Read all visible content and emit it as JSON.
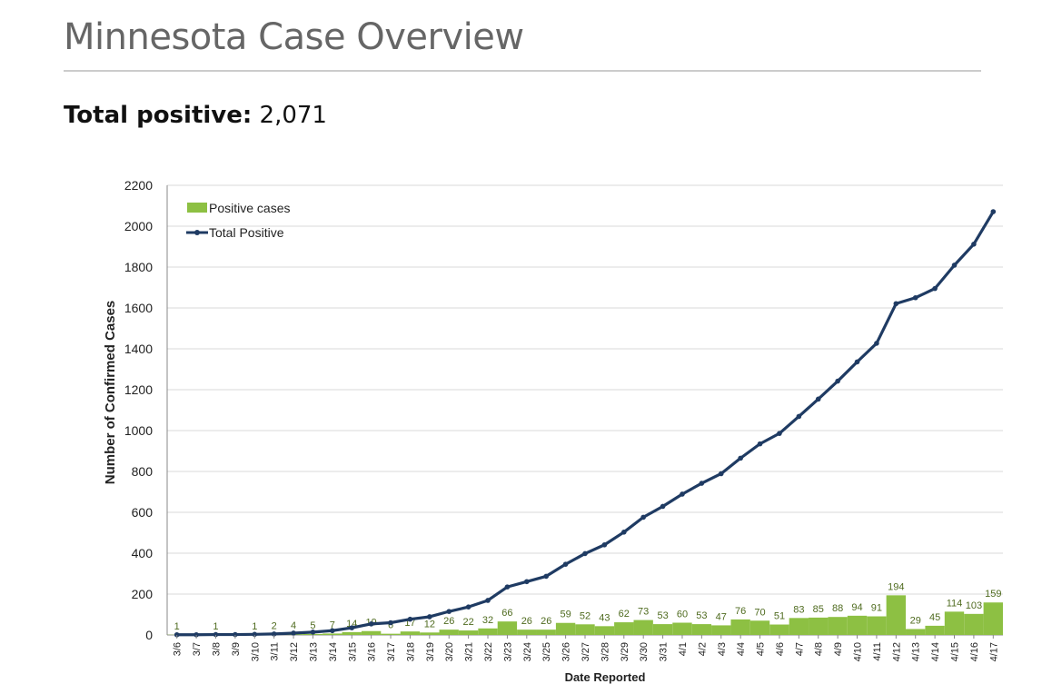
{
  "page": {
    "title": "Minnesota Case Overview",
    "total_label": "Total positive:",
    "total_value": "2,071"
  },
  "colors": {
    "bar": "#8dc043",
    "line": "#1f3b63",
    "bar_label": "#4f6b1f",
    "grid": "#d9d9d9"
  },
  "chart_data": {
    "type": "bar+line",
    "xlabel": "Date Reported",
    "ylabel": "Number of Confirmed Cases",
    "ylim": [
      0,
      2200
    ],
    "yticks": [
      0,
      200,
      400,
      600,
      800,
      1000,
      1200,
      1400,
      1600,
      1800,
      2000,
      2200
    ],
    "legend": {
      "position": "top-left",
      "entries": [
        "Positive cases",
        "Total Positive"
      ]
    },
    "categories": [
      "3/6",
      "3/7",
      "3/8",
      "3/9",
      "3/10",
      "3/11",
      "3/12",
      "3/13",
      "3/14",
      "3/15",
      "3/16",
      "3/17",
      "3/18",
      "3/19",
      "3/20",
      "3/21",
      "3/22",
      "3/23",
      "3/24",
      "3/25",
      "3/26",
      "3/27",
      "3/28",
      "3/29",
      "3/30",
      "3/31",
      "4/1",
      "4/2",
      "4/3",
      "4/4",
      "4/5",
      "4/6",
      "4/7",
      "4/8",
      "4/9",
      "4/10",
      "4/11",
      "4/12",
      "4/13",
      "4/14",
      "4/15",
      "4/16",
      "4/17"
    ],
    "series": [
      {
        "name": "Positive cases",
        "type": "bar",
        "values": [
          1,
          0,
          1,
          0,
          1,
          2,
          4,
          5,
          7,
          14,
          19,
          6,
          17,
          12,
          26,
          22,
          32,
          66,
          26,
          26,
          59,
          52,
          43,
          62,
          73,
          53,
          60,
          53,
          47,
          76,
          70,
          51,
          83,
          85,
          88,
          94,
          91,
          194,
          29,
          45,
          114,
          103,
          159
        ],
        "labels": [
          "1",
          "",
          "1",
          "",
          "1",
          "2",
          "4",
          "5",
          "7",
          "14",
          "19",
          "6",
          "17",
          "12",
          "26",
          "22",
          "32",
          "66",
          "26",
          "26",
          "59",
          "52",
          "43",
          "62",
          "73",
          "53",
          "60",
          "53",
          "47",
          "76",
          "70",
          "51",
          "83",
          "85",
          "88",
          "94",
          "91",
          "194",
          "29",
          "45",
          "114",
          "103",
          "159"
        ]
      },
      {
        "name": "Total Positive",
        "type": "line",
        "values": [
          1,
          1,
          2,
          2,
          3,
          5,
          9,
          14,
          21,
          35,
          54,
          60,
          77,
          89,
          115,
          137,
          169,
          235,
          261,
          287,
          346,
          398,
          441,
          503,
          576,
          629,
          689,
          742,
          789,
          865,
          935,
          986,
          1069,
          1154,
          1242,
          1336,
          1427,
          1621,
          1650,
          1695,
          1809,
          1912,
          2071
        ]
      }
    ]
  }
}
